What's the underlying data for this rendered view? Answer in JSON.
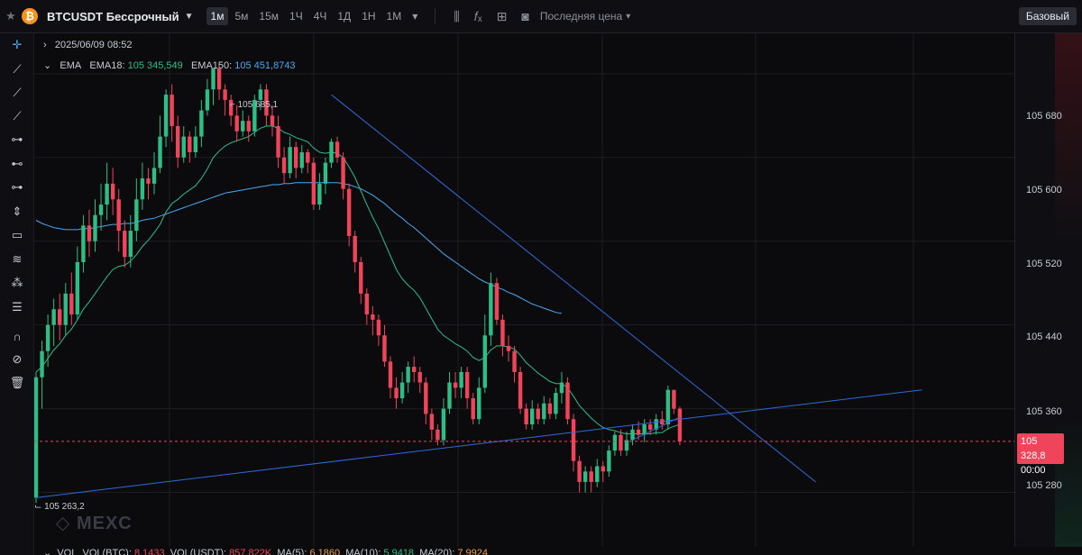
{
  "topbar": {
    "star_icon": "star-icon",
    "coin_glyph": "₿",
    "symbol": "BTCUSDT Бессрочный",
    "timeframes": [
      "1м",
      "5м",
      "15м",
      "1Ч",
      "4Ч",
      "1Д",
      "1Н",
      "1М"
    ],
    "active_timeframe": "1м",
    "price_type": "Последняя цена",
    "mode_button": "Базовый"
  },
  "legend": {
    "datetime": "2025/06/09 08:52",
    "indicator": "EMA",
    "ema18_label": "EMA18:",
    "ema18_value": "105 345,549",
    "ema150_label": "EMA150:",
    "ema150_value": "105 451,8743",
    "vol_line": {
      "vol": "VOL",
      "vol_btc_label": "VOL(BTC):",
      "vol_btc_value": "8,1433",
      "vol_usdt_label": "VOL(USDT):",
      "vol_usdt_value": "857,822K",
      "ma5_label": "MA(5):",
      "ma5_value": "6,1860",
      "ma10_label": "MA(10):",
      "ma10_value": "5,9418",
      "ma20_label": "MA(20):",
      "ma20_value": "7,9924"
    }
  },
  "chart_data": {
    "type": "candlestick",
    "symbol": "BTCUSDT Бессрочный",
    "interval": "1м",
    "y_axis_ticks": [
      105680,
      105600,
      105520,
      105440,
      105360,
      105280
    ],
    "y_tick_labels": [
      "105 680",
      "105 600",
      "105 520",
      "105 440",
      "105 360",
      "105 280"
    ],
    "ylim": [
      105240,
      105710
    ],
    "high_label": "105 685,1",
    "low_label": "105 263,2",
    "last_price": "105 328,8",
    "last_price_value": 105328.8,
    "countdown": "00:00",
    "colors": {
      "up": "#2ebd85",
      "down": "#f0445a",
      "ema18": "#2ebd85",
      "ema150": "#4aa8ef",
      "trendline": "#2f6bd8"
    },
    "candles": [
      [
        105275,
        105390,
        105270,
        105395
      ],
      [
        105390,
        105415,
        105360,
        105425
      ],
      [
        105415,
        105440,
        105400,
        105450
      ],
      [
        105440,
        105455,
        105420,
        105465
      ],
      [
        105455,
        105440,
        105425,
        105470
      ],
      [
        105440,
        105470,
        105430,
        105480
      ],
      [
        105470,
        105450,
        105440,
        105490
      ],
      [
        105450,
        105500,
        105445,
        105515
      ],
      [
        105500,
        105535,
        105490,
        105545
      ],
      [
        105535,
        105520,
        105505,
        105550
      ],
      [
        105520,
        105545,
        105510,
        105560
      ],
      [
        105545,
        105555,
        105530,
        105575
      ],
      [
        105555,
        105575,
        105540,
        105595
      ],
      [
        105575,
        105560,
        105545,
        105590
      ],
      [
        105560,
        105530,
        105510,
        105570
      ],
      [
        105530,
        105505,
        105495,
        105540
      ],
      [
        105505,
        105530,
        105495,
        105545
      ],
      [
        105530,
        105560,
        105520,
        105580
      ],
      [
        105560,
        105580,
        105550,
        105595
      ],
      [
        105580,
        105575,
        105560,
        105590
      ],
      [
        105575,
        105590,
        105565,
        105605
      ],
      [
        105590,
        105620,
        105585,
        105640
      ],
      [
        105620,
        105660,
        105610,
        105665
      ],
      [
        105660,
        105630,
        105615,
        105670
      ],
      [
        105630,
        105600,
        105590,
        105640
      ],
      [
        105600,
        105620,
        105595,
        105630
      ],
      [
        105620,
        105605,
        105595,
        105625
      ],
      [
        105605,
        105620,
        105600,
        105630
      ],
      [
        105620,
        105645,
        105610,
        105655
      ],
      [
        105645,
        105665,
        105640,
        105675
      ],
      [
        105665,
        105685,
        105650,
        105685
      ],
      [
        105685,
        105665,
        105655,
        105690
      ],
      [
        105665,
        105655,
        105640,
        105670
      ],
      [
        105655,
        105640,
        105630,
        105660
      ],
      [
        105640,
        105625,
        105615,
        105650
      ],
      [
        105625,
        105635,
        105620,
        105645
      ],
      [
        105635,
        105625,
        105615,
        105640
      ],
      [
        105625,
        105655,
        105620,
        105660
      ],
      [
        105655,
        105665,
        105645,
        105670
      ],
      [
        105665,
        105640,
        105630,
        105670
      ],
      [
        105640,
        105630,
        105620,
        105650
      ],
      [
        105630,
        105600,
        105590,
        105640
      ],
      [
        105600,
        105585,
        105575,
        105610
      ],
      [
        105585,
        105610,
        105580,
        105620
      ],
      [
        105610,
        105590,
        105580,
        105615
      ],
      [
        105590,
        105605,
        105585,
        105612
      ],
      [
        105605,
        105595,
        105585,
        105608
      ],
      [
        105595,
        105555,
        105550,
        105600
      ],
      [
        105555,
        105575,
        105550,
        105585
      ],
      [
        105575,
        105595,
        105565,
        105600
      ],
      [
        105595,
        105615,
        105590,
        105618
      ],
      [
        105615,
        105600,
        105595,
        105620
      ],
      [
        105600,
        105570,
        105560,
        105605
      ],
      [
        105570,
        105525,
        105515,
        105575
      ],
      [
        105525,
        105500,
        105490,
        105530
      ],
      [
        105500,
        105470,
        105460,
        105505
      ],
      [
        105470,
        105450,
        105440,
        105475
      ],
      [
        105450,
        105445,
        105430,
        105458
      ],
      [
        105445,
        105430,
        105420,
        105450
      ],
      [
        105430,
        105405,
        105400,
        105440
      ],
      [
        105405,
        105380,
        105370,
        105410
      ],
      [
        105380,
        105370,
        105360,
        105390
      ],
      [
        105370,
        105385,
        105365,
        105395
      ],
      [
        105385,
        105400,
        105375,
        105405
      ],
      [
        105400,
        105395,
        105385,
        105410
      ],
      [
        105395,
        105385,
        105375,
        105400
      ],
      [
        105385,
        105355,
        105345,
        105390
      ],
      [
        105355,
        105340,
        105330,
        105360
      ],
      [
        105340,
        105330,
        105325,
        105345
      ],
      [
        105330,
        105360,
        105325,
        105370
      ],
      [
        105360,
        105385,
        105355,
        105395
      ],
      [
        105385,
        105380,
        105370,
        105395
      ],
      [
        105380,
        105395,
        105370,
        105400
      ],
      [
        105395,
        105370,
        105360,
        105400
      ],
      [
        105370,
        105350,
        105345,
        105375
      ],
      [
        105350,
        105380,
        105345,
        105390
      ],
      [
        105380,
        105430,
        105375,
        105450
      ],
      [
        105430,
        105480,
        105420,
        105490
      ],
      [
        105480,
        105445,
        105440,
        105485
      ],
      [
        105445,
        105420,
        105410,
        105450
      ],
      [
        105420,
        105415,
        105405,
        105430
      ],
      [
        105415,
        105395,
        105385,
        105420
      ],
      [
        105395,
        105360,
        105355,
        105400
      ],
      [
        105360,
        105345,
        105340,
        105365
      ],
      [
        105345,
        105360,
        105340,
        105368
      ],
      [
        105360,
        105350,
        105345,
        105365
      ],
      [
        105350,
        105365,
        105345,
        105372
      ],
      [
        105365,
        105355,
        105350,
        105370
      ],
      [
        105355,
        105375,
        105350,
        105380
      ],
      [
        105375,
        105385,
        105365,
        105395
      ],
      [
        105385,
        105350,
        105345,
        105390
      ],
      [
        105350,
        105310,
        105300,
        105355
      ],
      [
        105310,
        105290,
        105280,
        105315
      ],
      [
        105290,
        105300,
        105280,
        105305
      ],
      [
        105300,
        105290,
        105280,
        105305
      ],
      [
        105290,
        105305,
        105285,
        105312
      ],
      [
        105305,
        105300,
        105290,
        105310
      ],
      [
        105300,
        105320,
        105295,
        105325
      ],
      [
        105320,
        105335,
        105315,
        105338
      ],
      [
        105335,
        105320,
        105315,
        105340
      ],
      [
        105320,
        105330,
        105315,
        105338
      ],
      [
        105330,
        105340,
        105325,
        105345
      ],
      [
        105340,
        105335,
        105330,
        105348
      ],
      [
        105335,
        105345,
        105328,
        105350
      ],
      [
        105345,
        105340,
        105335,
        105350
      ],
      [
        105340,
        105350,
        105335,
        105355
      ],
      [
        105350,
        105345,
        105340,
        105358
      ],
      [
        105345,
        105378,
        105340,
        105382
      ],
      [
        105378,
        105360,
        105355,
        105378
      ],
      [
        105360,
        105329,
        105325,
        105362
      ]
    ],
    "ema18": [
      105395,
      105400,
      105408,
      105416,
      105422,
      105430,
      105436,
      105445,
      105455,
      105462,
      105470,
      105478,
      105486,
      105493,
      105496,
      105497,
      105501,
      105507,
      105515,
      105521,
      105528,
      105536,
      105548,
      105556,
      105560,
      105565,
      105569,
      105573,
      105580,
      105589,
      105600,
      105606,
      105611,
      105614,
      105616,
      105618,
      105620,
      105624,
      105628,
      105630,
      105630,
      105628,
      105624,
      105622,
      105619,
      105617,
      105615,
      105609,
      105605,
      105604,
      105605,
      105604,
      105600,
      105591,
      105581,
      105568,
      105555,
      105543,
      105532,
      105519,
      105506,
      105493,
      105484,
      105478,
      105473,
      105466,
      105456,
      105446,
      105436,
      105430,
      105426,
      105422,
      105419,
      105415,
      105409,
      105406,
      105409,
      105416,
      105420,
      105420,
      105419,
      105417,
      105411,
      105404,
      105399,
      105394,
      105390,
      105386,
      105384,
      105384,
      105380,
      105372,
      105363,
      105357,
      105351,
      105346,
      105342,
      105340,
      105339,
      105337,
      105336,
      105336,
      105336,
      105336,
      105336,
      105337,
      105337,
      105341,
      105343,
      105345
    ],
    "ema150": [
      105540,
      105537,
      105535,
      105533,
      105532,
      105531,
      105531,
      105531,
      105532,
      105532,
      105533,
      105534,
      105535,
      105536,
      105536,
      105537,
      105537,
      105538,
      105540,
      105541,
      105542,
      105544,
      105546,
      105548,
      105550,
      105552,
      105554,
      105556,
      105558,
      105560,
      105562,
      105564,
      105566,
      105567,
      105568,
      105569,
      105570,
      105571,
      105572,
      105573,
      105574,
      105574,
      105575,
      105575,
      105576,
      105576,
      105576,
      105576,
      105576,
      105576,
      105576,
      105576,
      105575,
      105574,
      105572,
      105570,
      105567,
      105564,
      105560,
      105556,
      105551,
      105546,
      105542,
      105537,
      105533,
      105528,
      105523,
      105518,
      105513,
      105508,
      105504,
      105500,
      105496,
      105492,
      105488,
      105484,
      105481,
      105479,
      105476,
      105474,
      105471,
      105469,
      105466,
      105463,
      105460,
      105458,
      105456,
      105454,
      105452,
      105451
    ],
    "trendlines": [
      {
        "name": "support",
        "from": [
          0,
          105275
        ],
        "to": [
          150,
          105378
        ]
      },
      {
        "name": "resistance",
        "from": [
          50,
          105660
        ],
        "to": [
          132,
          105290
        ]
      },
      {
        "name": "short",
        "from": [
          101,
          105330
        ],
        "to": [
          109,
          105352
        ]
      }
    ]
  }
}
